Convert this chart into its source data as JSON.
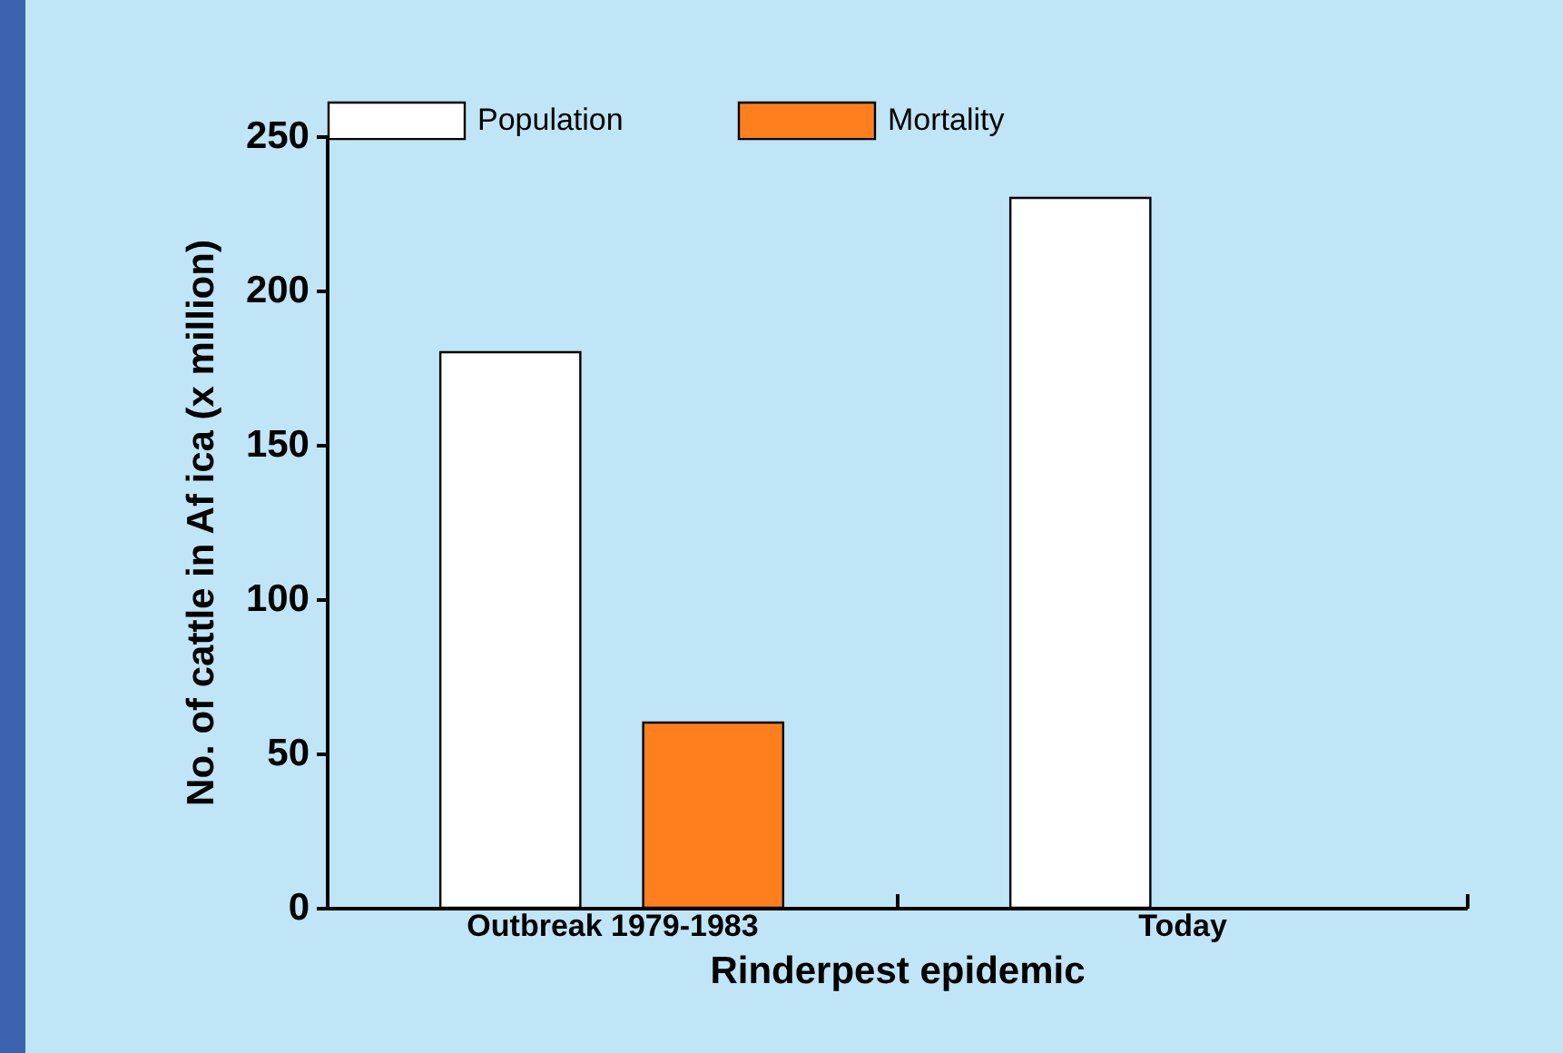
{
  "chart_data": {
    "type": "bar",
    "xlabel": "Rinderpest epidemic",
    "ylabel": "No. of  cattle in Af ica (x million)",
    "categories": [
      "Outbreak 1979-1983",
      "Today"
    ],
    "series": [
      {
        "name": "Population",
        "color": "#ffffff",
        "values": [
          180,
          230
        ]
      },
      {
        "name": "Mortality",
        "color": "#ff7f1f",
        "values": [
          60,
          null
        ]
      }
    ],
    "ylim": [
      0,
      250
    ],
    "yticks": [
      0,
      50,
      100,
      150,
      200,
      250
    ],
    "grid": false,
    "legend": "top"
  }
}
